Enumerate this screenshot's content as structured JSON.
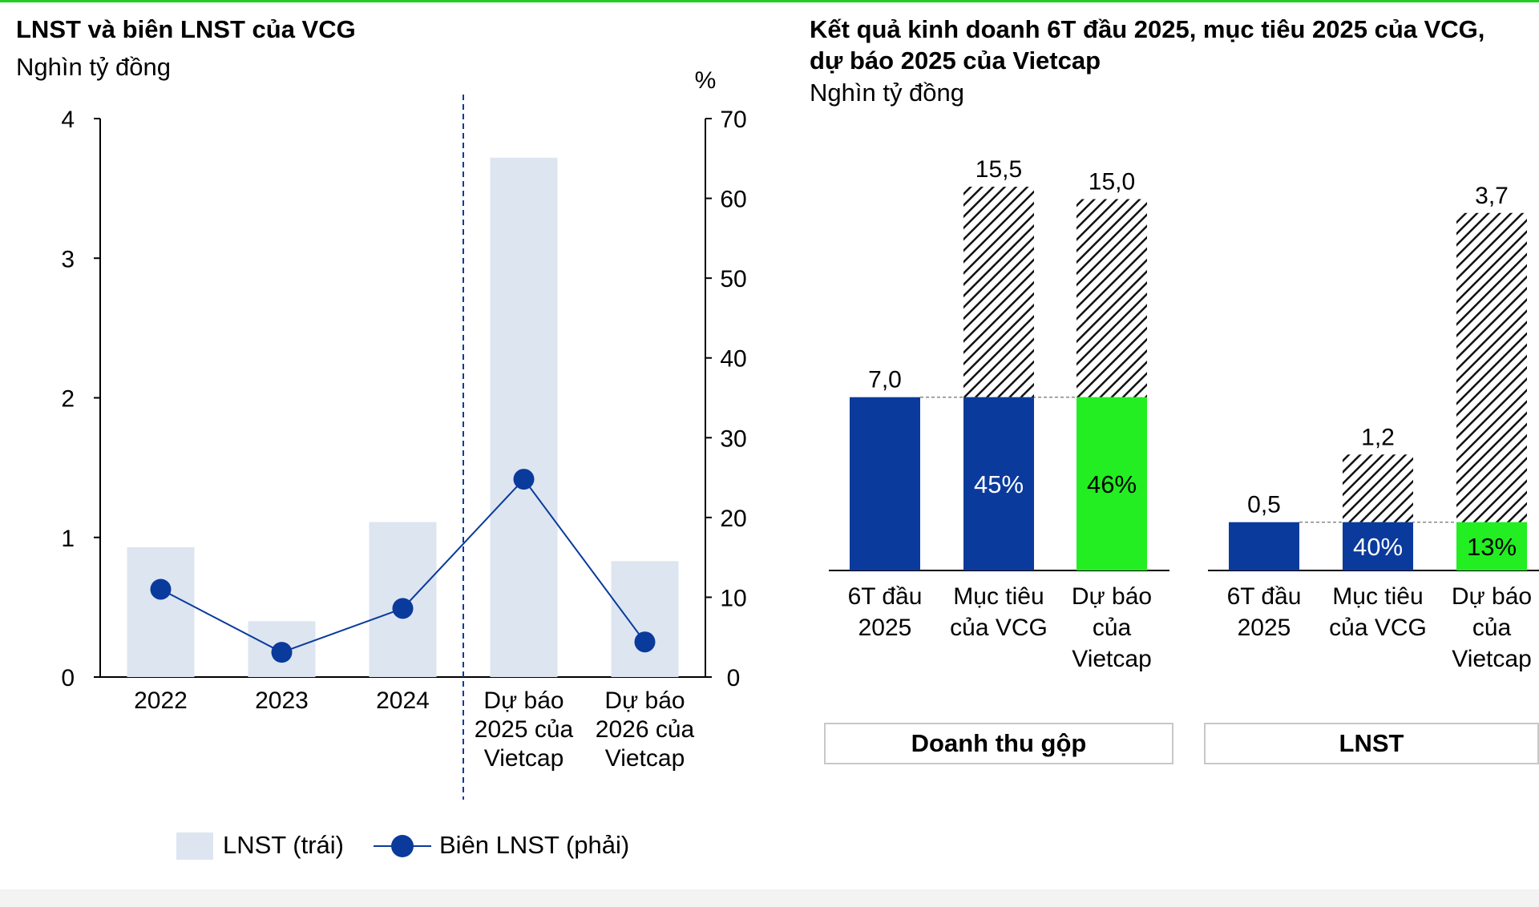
{
  "left_chart": {
    "title": "LNST và biên LNST của VCG",
    "unit": "Nghìn tỷ đồng",
    "right_axis_unit": "%",
    "left_ticks": [
      "0",
      "1",
      "2",
      "3",
      "4"
    ],
    "right_ticks": [
      "0",
      "10",
      "20",
      "30",
      "40",
      "50",
      "60",
      "70"
    ],
    "legend": {
      "bar_label": "LNST (trái)",
      "line_label": "Biên LNST (phải)"
    }
  },
  "right_chart": {
    "title_line1": "Kết quả kinh doanh 6T đầu 2025, mục tiêu 2025 của VCG,",
    "title_line2": "dự báo 2025 của Vietcap",
    "unit": "Nghìn tỷ đồng",
    "group1_label": "Doanh thu gộp",
    "group2_label": "LNST"
  },
  "colors": {
    "navy": "#0a3a9c",
    "green": "#22ee22",
    "light_bar": "#dde5f0",
    "accent_line": "#22cc22"
  },
  "chart_data": [
    {
      "type": "bar",
      "title": "LNST và biên LNST của VCG",
      "ylabel": "Nghìn tỷ đồng",
      "y2label": "%",
      "categories": [
        [
          "2022"
        ],
        [
          "2023"
        ],
        [
          "2024"
        ],
        [
          "Dự báo",
          "2025 của",
          "Vietcap"
        ],
        [
          "Dự báo",
          "2026 của",
          "Vietcap"
        ]
      ],
      "ylim": [
        0,
        4
      ],
      "y2lim": [
        0,
        70
      ],
      "forecast_divider_after": "2024",
      "legend_position": "bottom",
      "series": [
        {
          "name": "LNST (trái)",
          "type": "bar",
          "axis": "left",
          "values": [
            0.93,
            0.4,
            1.11,
            3.72,
            0.83
          ]
        },
        {
          "name": "Biên LNST (phải)",
          "type": "line",
          "axis": "right",
          "values": [
            11.0,
            3.1,
            8.6,
            24.8,
            4.4
          ]
        }
      ]
    },
    {
      "type": "bar",
      "title": "Kết quả kinh doanh 6T đầu 2025, mục tiêu 2025 của VCG, dự báo 2025 của Vietcap",
      "ylabel": "Nghìn tỷ đồng",
      "groups": [
        {
          "name": "Doanh thu gộp",
          "categories": [
            [
              "6T đầu",
              "2025"
            ],
            [
              "Mục tiêu",
              "của VCG"
            ],
            [
              "Dự báo",
              "của",
              "Vietcap"
            ]
          ],
          "values": [
            7.0,
            15.5,
            15.0
          ],
          "value_labels": [
            "7,0",
            "15,5",
            "15,0"
          ],
          "completion_labels": [
            "",
            "45%",
            "46%"
          ],
          "ylim": [
            0,
            18.3
          ]
        },
        {
          "name": "LNST",
          "categories": [
            [
              "6T đầu",
              "2025"
            ],
            [
              "Mục tiêu",
              "của VCG"
            ],
            [
              "Dự báo",
              "của",
              "Vietcap"
            ]
          ],
          "values": [
            0.5,
            1.2,
            3.7
          ],
          "value_labels": [
            "0,5",
            "1,2",
            "3,7"
          ],
          "completion_labels": [
            "",
            "40%",
            "13%"
          ],
          "ylim": [
            0,
            4.5
          ]
        }
      ]
    }
  ]
}
